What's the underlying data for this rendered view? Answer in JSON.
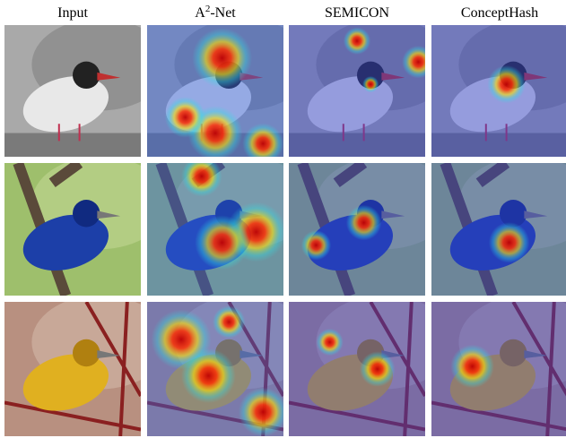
{
  "figure": {
    "columns": [
      {
        "text": "Input"
      },
      {
        "text": "A",
        "sup": "2",
        "rest": "-Net"
      },
      {
        "text": "SEMICON"
      },
      {
        "text": "ConceptHash"
      }
    ]
  }
}
